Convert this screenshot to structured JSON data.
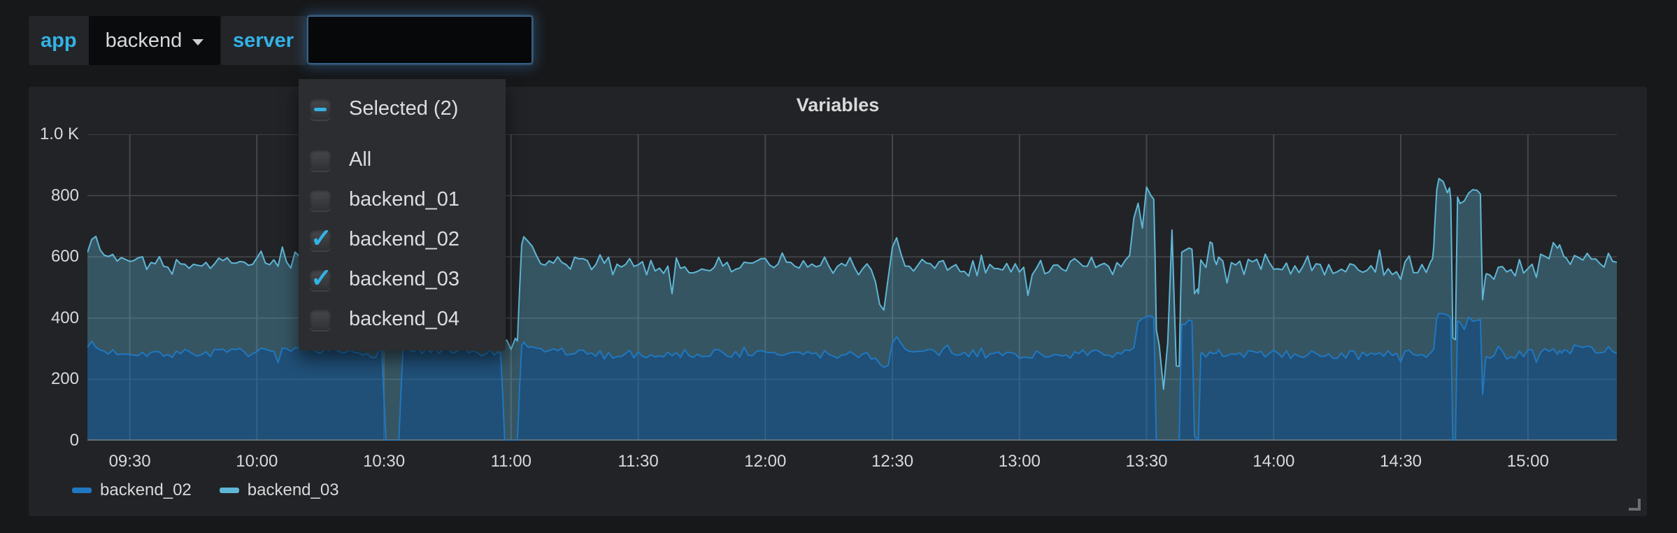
{
  "topbar": {
    "app": {
      "label": "app",
      "value": "backend"
    },
    "server": {
      "label": "server",
      "value": ""
    }
  },
  "dropdown": {
    "options": [
      {
        "label": "Selected (2)",
        "state": "indeterminate"
      },
      {
        "label": "All",
        "state": "unchecked"
      },
      {
        "label": "backend_01",
        "state": "unchecked"
      },
      {
        "label": "backend_02",
        "state": "checked"
      },
      {
        "label": "backend_03",
        "state": "checked"
      },
      {
        "label": "backend_04",
        "state": "unchecked"
      }
    ]
  },
  "panel": {
    "title": "Variables"
  },
  "chart_data": {
    "type": "area",
    "stacked": true,
    "title": "Variables",
    "grid": true,
    "legend_position": "bottom-left",
    "ylim": [
      0,
      1000
    ],
    "duration_min": 361,
    "x_start": "09:20",
    "x_end": "15:21",
    "noise_seed": 7,
    "y_ticks": [
      {
        "label": "0",
        "value": 0
      },
      {
        "label": "200",
        "value": 200
      },
      {
        "label": "400",
        "value": 400
      },
      {
        "label": "600",
        "value": 600
      },
      {
        "label": "800",
        "value": 800
      },
      {
        "label": "1.0 K",
        "value": 1000
      }
    ],
    "x_ticks": [
      {
        "label": "09:30",
        "min": 10
      },
      {
        "label": "10:00",
        "min": 40
      },
      {
        "label": "10:30",
        "min": 70
      },
      {
        "label": "11:00",
        "min": 100
      },
      {
        "label": "11:30",
        "min": 130
      },
      {
        "label": "12:00",
        "min": 160
      },
      {
        "label": "12:30",
        "min": 190
      },
      {
        "label": "13:00",
        "min": 220
      },
      {
        "label": "13:30",
        "min": 250
      },
      {
        "label": "14:00",
        "min": 280
      },
      {
        "label": "14:30",
        "min": 310
      },
      {
        "label": "15:00",
        "min": 340
      }
    ],
    "series": [
      {
        "name": "backend_02",
        "color": "#1f78c1",
        "fill": "rgba(31,120,193,0.52)",
        "noise_amp": 14,
        "breakpoints": [
          [
            0,
            318
          ],
          [
            4,
            290
          ],
          [
            20,
            285
          ],
          [
            45,
            290
          ],
          [
            68,
            285
          ],
          [
            69.5,
            290
          ],
          [
            70.5,
            0
          ],
          [
            73.5,
            0
          ],
          [
            74.5,
            300
          ],
          [
            80,
            290
          ],
          [
            97,
            285
          ],
          [
            97.5,
            285
          ],
          [
            98.5,
            0
          ],
          [
            101.5,
            0
          ],
          [
            102.5,
            310
          ],
          [
            105,
            300
          ],
          [
            120,
            280
          ],
          [
            150,
            285
          ],
          [
            185,
            280
          ],
          [
            187,
            250
          ],
          [
            189,
            240
          ],
          [
            190,
            330
          ],
          [
            191,
            350
          ],
          [
            193,
            290
          ],
          [
            220,
            280
          ],
          [
            245,
            285
          ],
          [
            247,
            330
          ],
          [
            248,
            390
          ],
          [
            251,
            400
          ],
          [
            251.7,
            400
          ],
          [
            252.3,
            0
          ],
          [
            257.7,
            0
          ],
          [
            258.3,
            380
          ],
          [
            260.7,
            390
          ],
          [
            261.3,
            15
          ],
          [
            262.2,
            0
          ],
          [
            262.8,
            280
          ],
          [
            266,
            285
          ],
          [
            290,
            280
          ],
          [
            315,
            282
          ],
          [
            317,
            285
          ],
          [
            317.8,
            300
          ],
          [
            318.5,
            400
          ],
          [
            321.5,
            405
          ],
          [
            321.8,
            400
          ],
          [
            322.3,
            0
          ],
          [
            322.9,
            0
          ],
          [
            323.4,
            390
          ],
          [
            328,
            400
          ],
          [
            328.8,
            395
          ],
          [
            329.3,
            150
          ],
          [
            330.2,
            275
          ],
          [
            340,
            285
          ],
          [
            352,
            300
          ],
          [
            361,
            295
          ]
        ]
      },
      {
        "name": "backend_03",
        "color": "#5fb6d6",
        "fill": "rgba(95,182,214,0.34)",
        "noise_amp": 22,
        "breakpoints": [
          [
            0,
            330
          ],
          [
            2,
            355
          ],
          [
            5,
            300
          ],
          [
            20,
            290
          ],
          [
            40,
            300
          ],
          [
            55,
            285
          ],
          [
            68,
            295
          ],
          [
            70,
            310
          ],
          [
            74,
            300
          ],
          [
            75,
            290
          ],
          [
            90,
            285
          ],
          [
            97,
            295
          ],
          [
            98,
            330
          ],
          [
            100,
            310
          ],
          [
            102,
            330
          ],
          [
            103,
            330
          ],
          [
            105,
            325
          ],
          [
            106,
            290
          ],
          [
            115,
            295
          ],
          [
            137,
            285
          ],
          [
            138,
            205
          ],
          [
            139,
            290
          ],
          [
            160,
            290
          ],
          [
            185,
            285
          ],
          [
            187,
            215
          ],
          [
            188,
            235
          ],
          [
            190,
            330
          ],
          [
            191,
            320
          ],
          [
            193,
            285
          ],
          [
            210,
            280
          ],
          [
            221,
            285
          ],
          [
            222,
            200
          ],
          [
            223,
            285
          ],
          [
            240,
            290
          ],
          [
            246,
            295
          ],
          [
            247,
            430
          ],
          [
            248,
            400
          ],
          [
            249,
            305
          ],
          [
            250,
            405
          ],
          [
            251,
            395
          ],
          [
            252,
            385
          ],
          [
            253,
            310
          ],
          [
            254,
            185
          ],
          [
            255,
            305
          ],
          [
            256,
            685
          ],
          [
            256.6,
            420
          ],
          [
            257,
            260
          ],
          [
            258,
            235
          ],
          [
            260.7,
            235
          ],
          [
            261.3,
            465
          ],
          [
            262.2,
            480
          ],
          [
            262.8,
            310
          ],
          [
            264,
            290
          ],
          [
            265.5,
            360
          ],
          [
            266.5,
            290
          ],
          [
            280,
            285
          ],
          [
            300,
            280
          ],
          [
            310,
            285
          ],
          [
            316,
            290
          ],
          [
            317.5,
            300
          ],
          [
            318.5,
            420
          ],
          [
            321.5,
            420
          ],
          [
            322.3,
            335
          ],
          [
            322.9,
            330
          ],
          [
            323.4,
            405
          ],
          [
            328,
            420
          ],
          [
            328.8,
            410
          ],
          [
            329.3,
            310
          ],
          [
            330.2,
            270
          ],
          [
            335,
            275
          ],
          [
            342,
            290
          ],
          [
            347.5,
            345
          ],
          [
            348.5,
            305
          ],
          [
            352,
            285
          ],
          [
            356,
            300
          ],
          [
            361,
            285
          ]
        ]
      }
    ]
  }
}
